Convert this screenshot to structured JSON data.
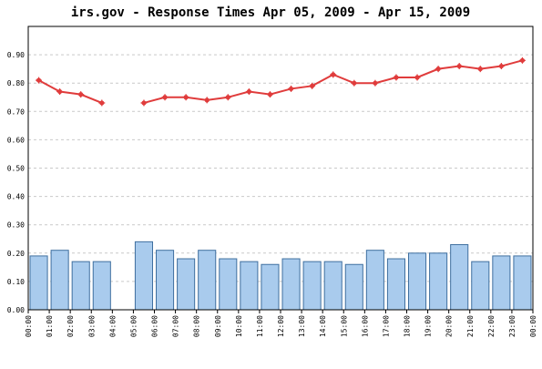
{
  "chart_data": {
    "title": "irs.gov - Response Times Apr 05, 2009 - Apr 15, 2009",
    "type": "bar+line",
    "y_ticks": [
      "0.00",
      "0.10",
      "0.20",
      "0.30",
      "0.40",
      "0.50",
      "0.60",
      "0.70",
      "0.80",
      "0.90"
    ],
    "ylim": [
      0,
      1.0
    ],
    "grid": true,
    "legend": "none",
    "x_labels": [
      "00:00",
      "01:00",
      "02:00",
      "03:00",
      "04:00",
      "05:00",
      "06:00",
      "07:00",
      "08:00",
      "09:00",
      "10:00",
      "11:00",
      "12:00",
      "13:00",
      "14:00",
      "15:00",
      "16:00",
      "17:00",
      "18:00",
      "19:00",
      "20:00",
      "21:00",
      "22:00",
      "23:00",
      "00:00"
    ],
    "bar_values": [
      0.19,
      0.21,
      0.17,
      0.17,
      null,
      0.24,
      0.21,
      0.18,
      0.21,
      0.18,
      0.17,
      0.16,
      0.18,
      0.17,
      0.17,
      0.16,
      0.21,
      0.18,
      0.2,
      0.2,
      0.23,
      0.17,
      0.19,
      0.19
    ],
    "line_values": [
      0.81,
      0.77,
      0.76,
      0.73,
      null,
      0.73,
      0.75,
      0.75,
      0.74,
      0.75,
      0.77,
      0.76,
      0.78,
      0.79,
      0.83,
      0.8,
      0.8,
      0.82,
      0.82,
      0.85,
      0.86,
      0.85,
      0.86,
      0.88
    ],
    "colors": {
      "bar_fill": "#a9cbed",
      "bar_stroke": "#3f6f9f",
      "line": "#e03c3c",
      "grid": "#c9c9c9",
      "frame": "#000000"
    }
  }
}
